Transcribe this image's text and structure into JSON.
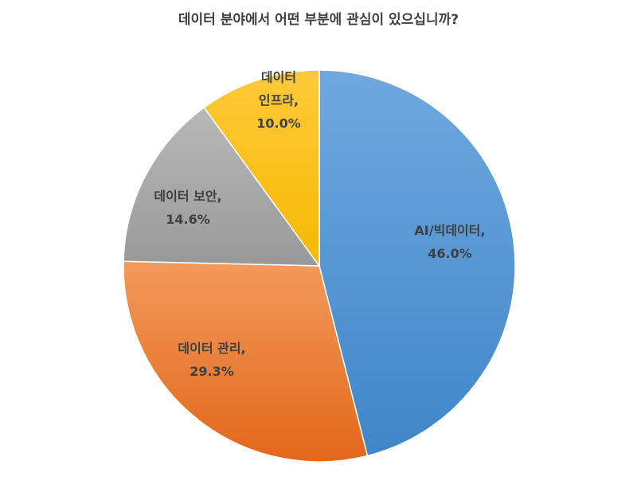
{
  "chart_data": {
    "type": "pie",
    "title": "데이터 분야에서 어떤 부분에 관심이 있으십니까?",
    "start_angle_deg": 0,
    "direction": "clockwise",
    "slices": [
      {
        "label": "AI/빅데이터",
        "value": 46.0,
        "display": "46.0%",
        "color": "#5B9BD5",
        "label_lines": [
          "AI/빅데이터,",
          "46.0%"
        ]
      },
      {
        "label": "데이터 관리",
        "value": 29.3,
        "display": "29.3%",
        "color": "#ED7D31",
        "label_lines": [
          "데이터 관리,",
          "29.3%"
        ]
      },
      {
        "label": "데이터 보안",
        "value": 14.6,
        "display": "14.6%",
        "color": "#A5A5A5",
        "label_lines": [
          "데이터 보안,",
          "14.6%"
        ]
      },
      {
        "label": "데이터 인프라",
        "value": 10.0,
        "display": "10.0%",
        "color": "#FFC000",
        "label_lines": [
          "데이터",
          "인프라,",
          "10.0%"
        ]
      }
    ]
  }
}
